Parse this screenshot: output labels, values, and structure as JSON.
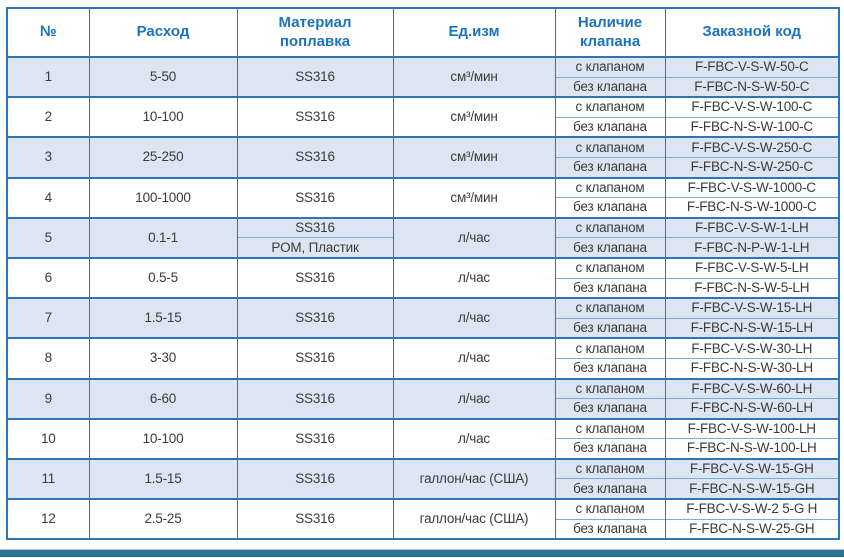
{
  "table": {
    "columns": [
      "№",
      "Расход",
      "Материал поплавка",
      "Ед.изм",
      "Наличие клапана",
      "Заказной код"
    ],
    "rows": [
      {
        "num": "1",
        "flow": "5-50",
        "materials": [
          "SS316"
        ],
        "unit": "см³/мин",
        "variants": [
          {
            "valve": "с клапаном",
            "code": "F-FBC-V-S-W-50-C"
          },
          {
            "valve": "без клапана",
            "code": "F-FBC-N-S-W-50-C"
          }
        ]
      },
      {
        "num": "2",
        "flow": "10-100",
        "materials": [
          "SS316"
        ],
        "unit": "см³/мин",
        "variants": [
          {
            "valve": "с клапаном",
            "code": "F-FBC-V-S-W-100-C"
          },
          {
            "valve": "без клапана",
            "code": "F-FBC-N-S-W-100-C"
          }
        ]
      },
      {
        "num": "3",
        "flow": "25-250",
        "materials": [
          "SS316"
        ],
        "unit": "см³/мин",
        "variants": [
          {
            "valve": "с клапаном",
            "code": "F-FBC-V-S-W-250-C"
          },
          {
            "valve": "без клапана",
            "code": "F-FBC-N-S-W-250-C"
          }
        ]
      },
      {
        "num": "4",
        "flow": "100-1000",
        "materials": [
          "SS316"
        ],
        "unit": "см³/мин",
        "variants": [
          {
            "valve": "с клапаном",
            "code": "F-FBC-V-S-W-1000-C"
          },
          {
            "valve": "без клапана",
            "code": "F-FBC-N-S-W-1000-C"
          }
        ]
      },
      {
        "num": "5",
        "flow": "0.1-1",
        "materials": [
          "SS316",
          "POM, Пластик"
        ],
        "unit": "л/час",
        "variants": [
          {
            "valve": "с клапаном",
            "code": "F-FBC-V-S-W-1-LH"
          },
          {
            "valve": "без клапана",
            "code": "F-FBC-N-P-W-1-LH"
          }
        ]
      },
      {
        "num": "6",
        "flow": "0.5-5",
        "materials": [
          "SS316"
        ],
        "unit": "л/час",
        "variants": [
          {
            "valve": "с клапаном",
            "code": "F-FBC-V-S-W-5-LH"
          },
          {
            "valve": "без клапана",
            "code": "F-FBC-N-S-W-5-LH"
          }
        ]
      },
      {
        "num": "7",
        "flow": "1.5-15",
        "materials": [
          "SS316"
        ],
        "unit": "л/час",
        "variants": [
          {
            "valve": "с клапаном",
            "code": "F-FBC-V-S-W-15-LH"
          },
          {
            "valve": "без клапана",
            "code": "F-FBC-N-S-W-15-LH"
          }
        ]
      },
      {
        "num": "8",
        "flow": "3-30",
        "materials": [
          "SS316"
        ],
        "unit": "л/час",
        "variants": [
          {
            "valve": "с клапаном",
            "code": "F-FBC-V-S-W-30-LH"
          },
          {
            "valve": "без клапана",
            "code": "F-FBC-N-S-W-30-LH"
          }
        ]
      },
      {
        "num": "9",
        "flow": "6-60",
        "materials": [
          "SS316"
        ],
        "unit": "л/час",
        "variants": [
          {
            "valve": "с клапаном",
            "code": "F-FBC-V-S-W-60-LH"
          },
          {
            "valve": "без клапана",
            "code": "F-FBC-N-S-W-60-LH"
          }
        ]
      },
      {
        "num": "10",
        "flow": "10-100",
        "materials": [
          "SS316"
        ],
        "unit": "л/час",
        "variants": [
          {
            "valve": "с клапаном",
            "code": "F-FBC-V-S-W-100-LH"
          },
          {
            "valve": "без клапана",
            "code": "F-FBC-N-S-W-100-LH"
          }
        ]
      },
      {
        "num": "11",
        "flow": "1.5-15",
        "materials": [
          "SS316"
        ],
        "unit": "галлон/час (США)",
        "variants": [
          {
            "valve": "с клапаном",
            "code": "F-FBC-V-S-W-15-GH"
          },
          {
            "valve": "без клапана",
            "code": "F-FBC-N-S-W-15-GH"
          }
        ]
      },
      {
        "num": "12",
        "flow": "2.5-25",
        "materials": [
          "SS316"
        ],
        "unit": "галлон/час (США)",
        "variants": [
          {
            "valve": "с клапаном",
            "code": "F-FBC-V-S-W-2 5-G H"
          },
          {
            "valve": "без клапана",
            "code": "F-FBC-N-S-W-25-GH"
          }
        ]
      }
    ]
  },
  "colors": {
    "header_text": "#1b73bd",
    "border_strong": "#2e75b6",
    "border_light": "#7fa9d4",
    "row_shaded_bg": "#dce6f2",
    "footer_bar": "#2f6f9a"
  }
}
